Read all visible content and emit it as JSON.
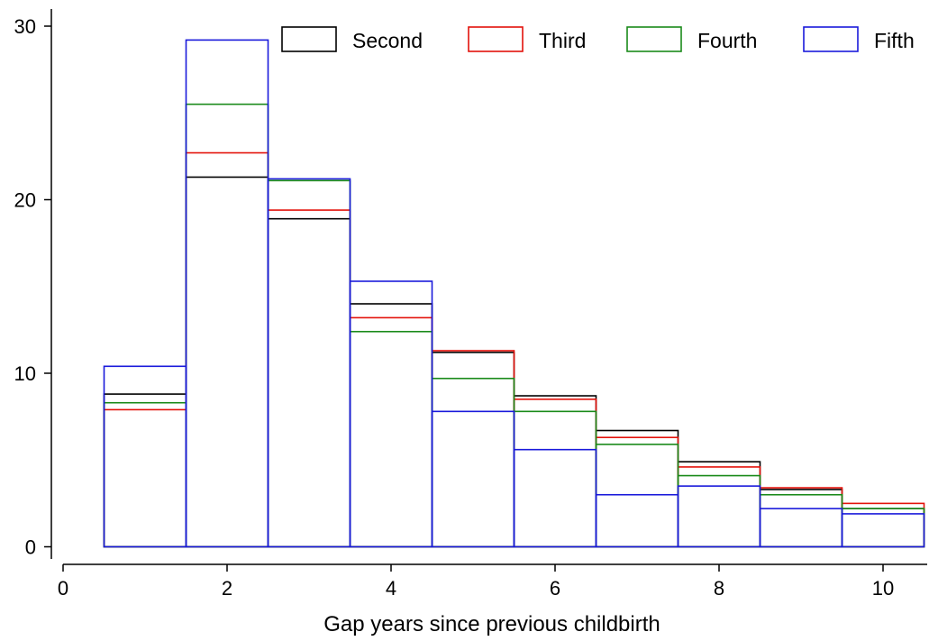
{
  "chart_data": {
    "type": "histogram",
    "xlabel": "Gap years since previous childbirth",
    "ylabel": "",
    "xlim": [
      -0.4,
      10.5
    ],
    "ylim": [
      -1.1,
      30.8
    ],
    "x_ticks": [
      0,
      2,
      4,
      6,
      8,
      10
    ],
    "y_ticks": [
      0,
      10,
      20,
      30
    ],
    "bins": [
      [
        0.5,
        1.5
      ],
      [
        1.5,
        2.5
      ],
      [
        2.5,
        3.5
      ],
      [
        3.5,
        4.5
      ],
      [
        4.5,
        5.5
      ],
      [
        5.5,
        6.5
      ],
      [
        6.5,
        7.5
      ],
      [
        7.5,
        8.5
      ],
      [
        8.5,
        9.5
      ],
      [
        9.5,
        10.5
      ]
    ],
    "series": [
      {
        "name": "Second",
        "color": "#000000",
        "values": [
          8.8,
          21.3,
          18.9,
          14.0,
          11.2,
          8.7,
          6.7,
          4.9,
          3.3,
          2.2
        ]
      },
      {
        "name": "Third",
        "color": "#e3120b",
        "values": [
          7.9,
          22.7,
          19.4,
          13.2,
          11.3,
          8.5,
          6.3,
          4.6,
          3.4,
          2.5
        ]
      },
      {
        "name": "Fourth",
        "color": "#1a8a1a",
        "values": [
          8.3,
          25.5,
          21.1,
          12.4,
          9.7,
          7.8,
          5.9,
          4.1,
          3.0,
          2.2
        ]
      },
      {
        "name": "Fifth",
        "color": "#1a1adb",
        "values": [
          10.4,
          29.2,
          21.2,
          15.3,
          7.8,
          5.6,
          3.0,
          3.5,
          2.2,
          1.9
        ]
      }
    ],
    "legend_position": "top",
    "grid": false
  }
}
